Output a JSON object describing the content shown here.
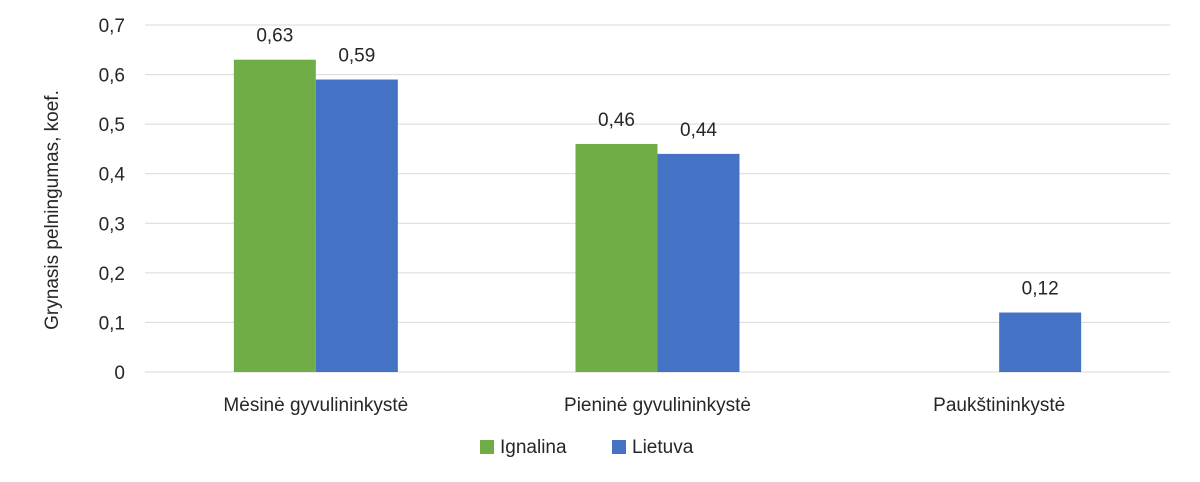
{
  "chart_data": {
    "type": "bar",
    "categories": [
      "Mėsinė gyvulininkystė",
      "Pieninė gyvulininkystė",
      "Paukštininkystė"
    ],
    "series": [
      {
        "name": "Ignalina",
        "values": [
          0.63,
          0.46,
          null
        ],
        "labels": [
          "0,63",
          "0,46",
          ""
        ],
        "color": "#70AD47"
      },
      {
        "name": "Lietuva",
        "values": [
          0.59,
          0.44,
          0.12
        ],
        "labels": [
          "0,59",
          "0,44",
          "0,12"
        ],
        "color": "#4472C4"
      }
    ],
    "ylabel": "Grynasis pelningumas, koef.",
    "xlabel": "",
    "ylim": [
      0,
      0.7
    ],
    "yticks": [
      0,
      0.1,
      0.2,
      0.3,
      0.4,
      0.5,
      0.6,
      0.7
    ],
    "ytick_labels": [
      "0",
      "0,1",
      "0,2",
      "0,3",
      "0,4",
      "0,5",
      "0,6",
      "0,7"
    ],
    "grid": true,
    "gridline_color": "#D9D9D9",
    "legend_position": "bottom"
  }
}
